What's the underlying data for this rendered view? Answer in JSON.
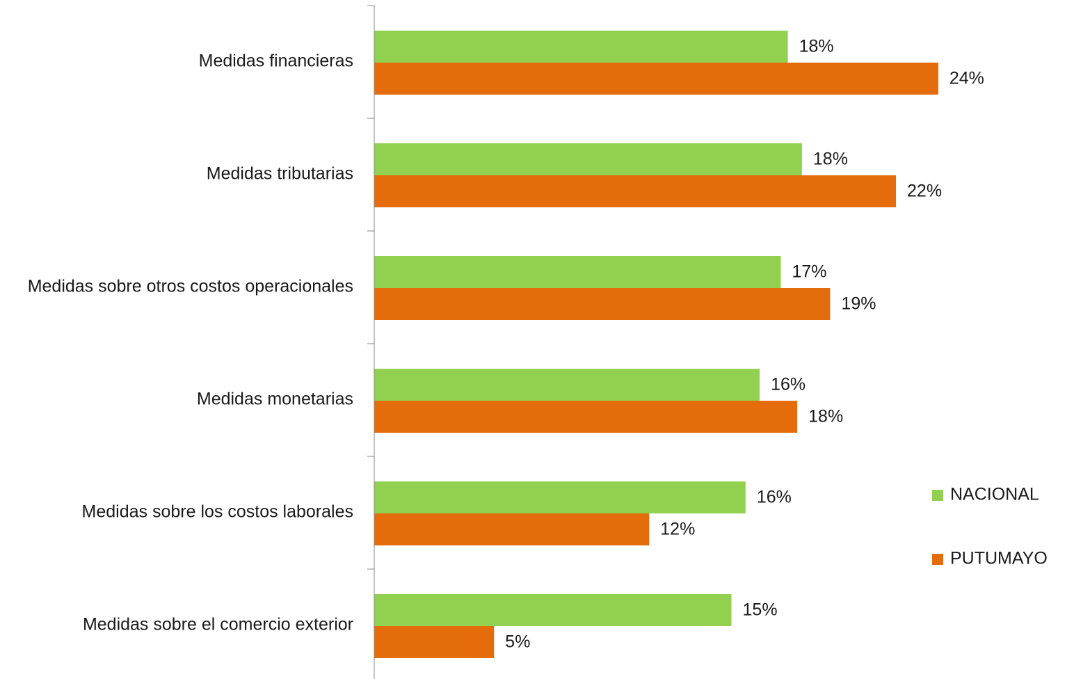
{
  "chart_data": {
    "type": "hbar",
    "categories": [
      "Medidas financieras",
      "Medidas tributarias",
      "Medidas sobre otros costos operacionales",
      "Medidas monetarias",
      "Medidas sobre los costos laborales",
      "Medidas sobre el comercio exterior"
    ],
    "series": [
      {
        "name": "NACIONAL",
        "color": "#92d050",
        "values": [
          17.6,
          18.2,
          17.3,
          16.4,
          15.8,
          15.2
        ],
        "value_labels": [
          "18%",
          "18%",
          "17%",
          "16%",
          "16%",
          "15%"
        ]
      },
      {
        "name": "PUTUMAYO",
        "color": "#e46c0a",
        "values": [
          24.0,
          22.2,
          19.4,
          18.0,
          11.7,
          5.1
        ],
        "value_labels": [
          "24%",
          "22%",
          "19%",
          "18%",
          "12%",
          "5%"
        ]
      }
    ],
    "xlim": [
      0,
      28
    ],
    "legend": "right"
  }
}
